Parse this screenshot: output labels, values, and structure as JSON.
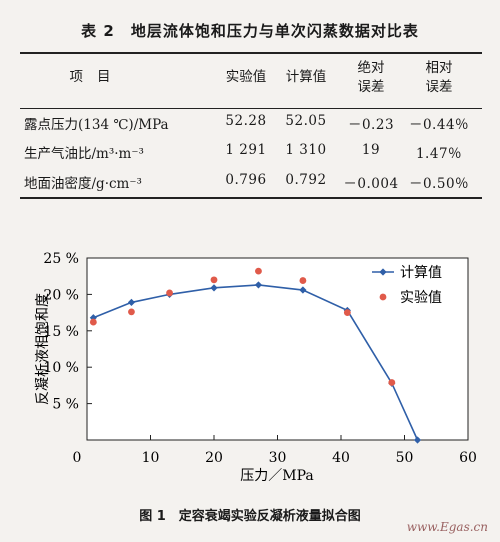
{
  "table": {
    "caption": "表 2　地层流体饱和压力与单次闪蒸数据对比表",
    "headers": {
      "item": "项目",
      "experimental": "实验值",
      "calculated": "计算值",
      "abs_error_line1": "绝对",
      "abs_error_line2": "误差",
      "rel_error_line1": "相对",
      "rel_error_line2": "误差"
    },
    "rows": [
      {
        "label": "露点压力(134 ℃)/MPa",
        "experimental": "52.28",
        "calculated": "52.05",
        "abs_error": "－0.23",
        "rel_error": "－0.44％"
      },
      {
        "label": "生产气油比/m³·m⁻³",
        "experimental": "1 291",
        "calculated": "1 310",
        "abs_error": "19",
        "rel_error": "1.47％"
      },
      {
        "label": "地面油密度/g·cm⁻³",
        "experimental": "0.796",
        "calculated": "0.792",
        "abs_error": "－0.004",
        "rel_error": "－0.50％"
      }
    ]
  },
  "chart_data": {
    "type": "line",
    "xlabel": "压力／MPa",
    "ylabel": "反凝析液相饱和度",
    "xlim": [
      0,
      60
    ],
    "ylim": [
      0,
      25
    ],
    "x_ticks": [
      "0",
      "10",
      "20",
      "30",
      "40",
      "50",
      "60"
    ],
    "y_ticks": [
      "5 %",
      "10 %",
      "15 %",
      "20 %",
      "25 %"
    ],
    "legend_position": "top-right",
    "series": [
      {
        "name": "计算值",
        "style": "line-diamond",
        "color": "#2f5fa8",
        "x": [
          1,
          7,
          13,
          20,
          27,
          34,
          41,
          48,
          52.05
        ],
        "y": [
          16.8,
          18.9,
          20.0,
          20.9,
          21.3,
          20.6,
          17.8,
          7.8,
          0
        ]
      },
      {
        "name": "实验值",
        "style": "point-circle",
        "color": "#e05a4a",
        "x": [
          1,
          7,
          13,
          20,
          27,
          34,
          41,
          48
        ],
        "y": [
          16.2,
          17.6,
          20.2,
          22.0,
          23.2,
          21.9,
          17.5,
          7.9
        ]
      }
    ]
  },
  "figure_caption": "图 1　定容衰竭实验反凝析液量拟合图",
  "watermark": "www.Egas.cn"
}
